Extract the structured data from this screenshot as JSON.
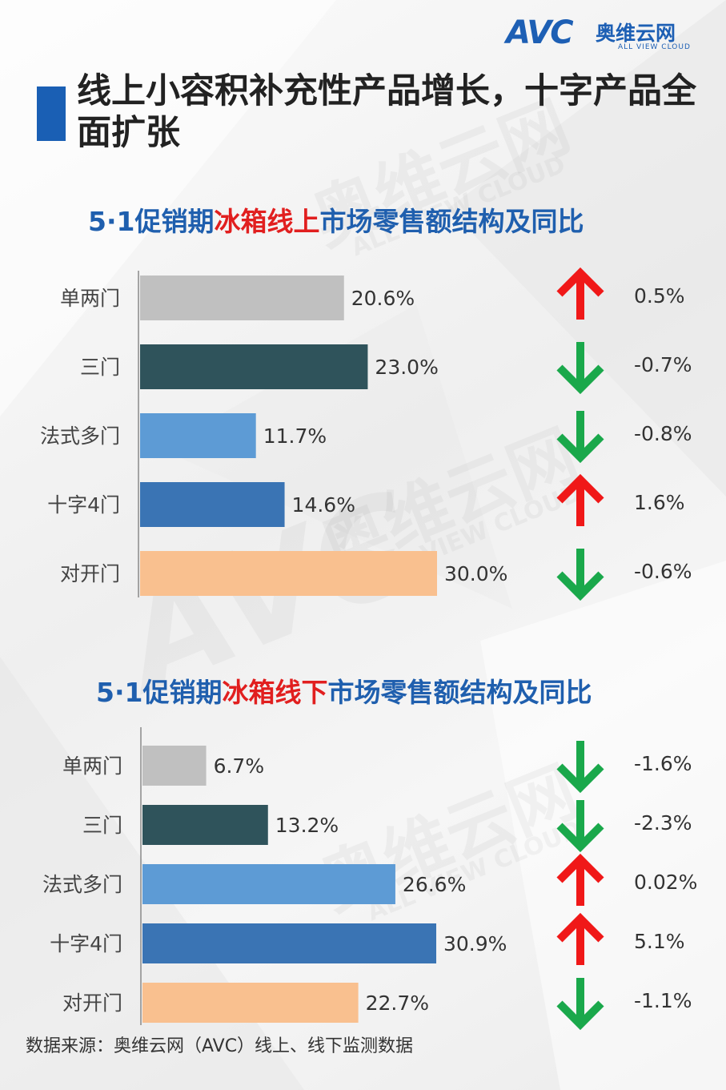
{
  "logo": {
    "mark": "AVC",
    "cn": "奥维云网",
    "en": "ALL VIEW CLOUD"
  },
  "page_title": "线上小容积补充性产品增长，十字产品全面扩张",
  "watermark": {
    "cn": "奥维云网",
    "en": "ALL VIEW CLOUD",
    "mark": "AVC"
  },
  "colors": {
    "单两门": "#c0c0c0",
    "三门": "#2f535b",
    "法式多门": "#5d9bd5",
    "十字4门": "#3a74b4",
    "对开门": "#f9c08f",
    "up": "#f01818",
    "down": "#1aa84b"
  },
  "chart_data": [
    {
      "type": "bar",
      "title": {
        "prefix": "5·1促销期",
        "highlight": "冰箱线上",
        "suffix": "市场零售额结构及同比"
      },
      "categories": [
        "单两门",
        "三门",
        "法式多门",
        "十字4门",
        "对开门"
      ],
      "values": [
        20.6,
        23.0,
        11.7,
        14.6,
        30.0
      ],
      "value_labels": [
        "20.6%",
        "23.0%",
        "11.7%",
        "14.6%",
        "30.0%"
      ],
      "yoy": [
        0.5,
        -0.7,
        -0.8,
        1.6,
        -0.6
      ],
      "yoy_labels": [
        "0.5%",
        "-0.7%",
        "-0.8%",
        "1.6%",
        "-0.6%"
      ],
      "xlim": [
        0,
        30.0
      ]
    },
    {
      "type": "bar",
      "title": {
        "prefix": "5·1促销期",
        "highlight": "冰箱线下",
        "suffix": "市场零售额结构及同比"
      },
      "categories": [
        "单两门",
        "三门",
        "法式多门",
        "十字4门",
        "对开门"
      ],
      "values": [
        6.7,
        13.2,
        26.6,
        30.9,
        22.7
      ],
      "value_labels": [
        "6.7%",
        "13.2%",
        "26.6%",
        "30.9%",
        "22.7%"
      ],
      "yoy": [
        -1.6,
        -2.3,
        0.02,
        5.1,
        -1.1
      ],
      "yoy_labels": [
        "-1.6%",
        "-2.3%",
        "0.02%",
        "5.1%",
        "-1.1%"
      ],
      "xlim": [
        0,
        30.9
      ]
    }
  ],
  "source": "数据来源：奥维云网（AVC）线上、线下监测数据"
}
